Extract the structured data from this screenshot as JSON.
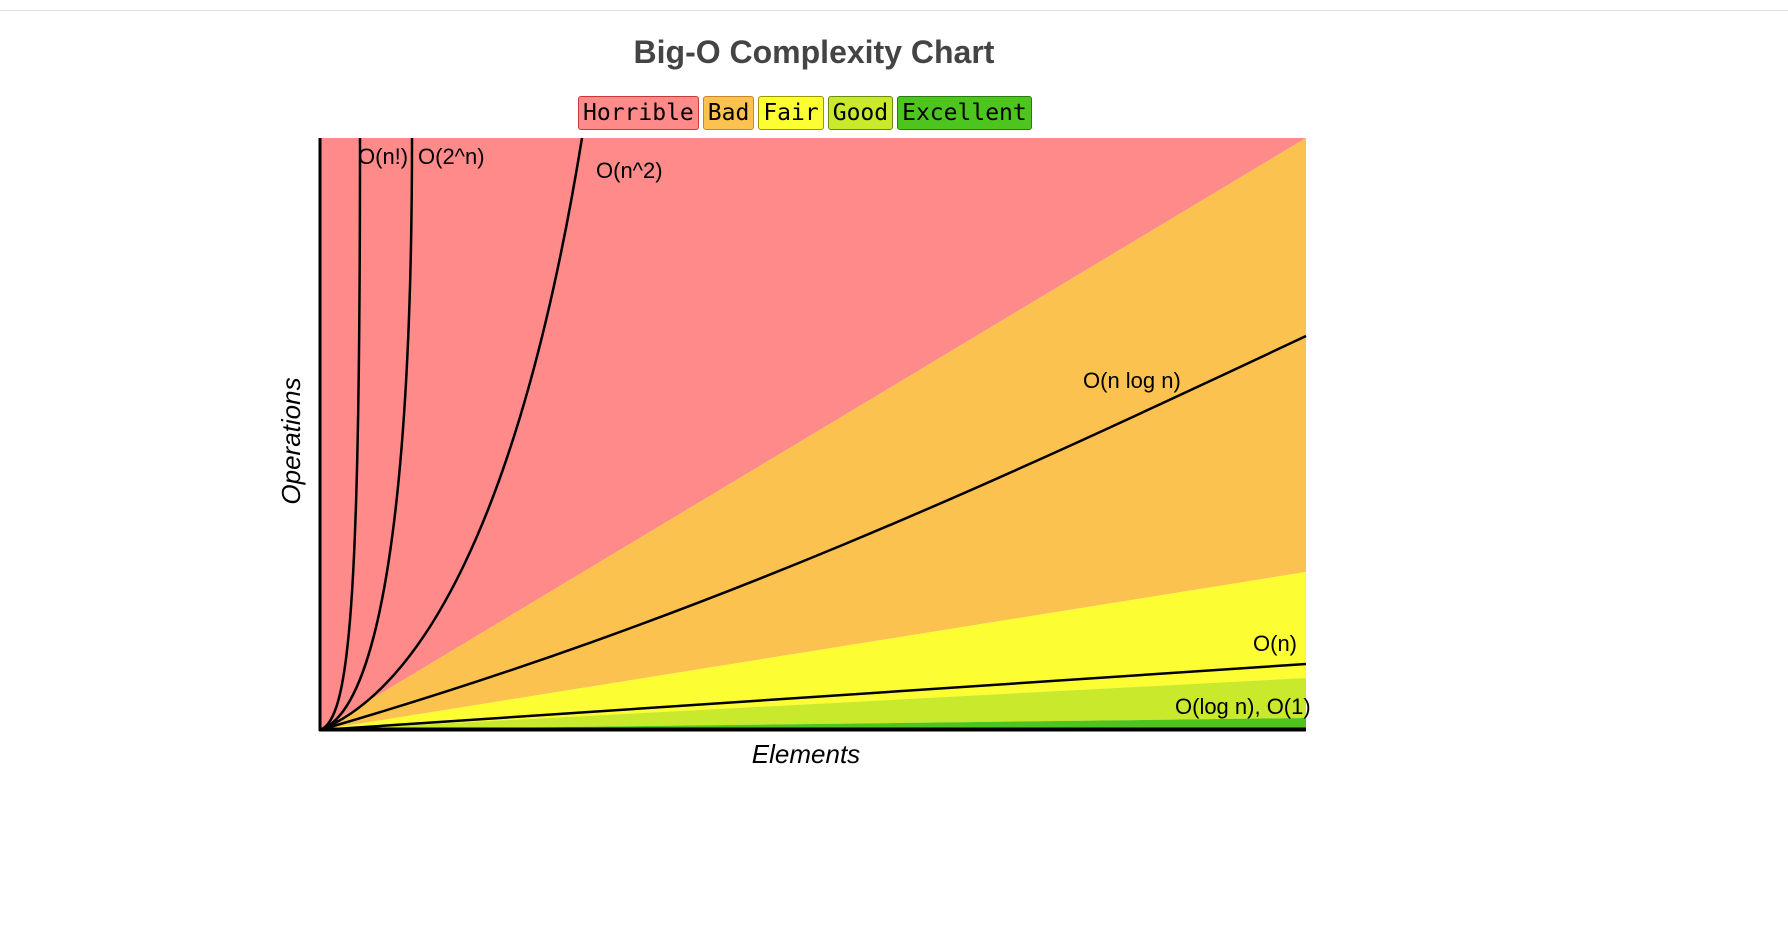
{
  "chart_data": {
    "type": "line",
    "title": "Big-O Complexity Chart",
    "xlabel": "Elements",
    "ylabel": "Operations",
    "grid": false,
    "legend_placement": "top-center",
    "legend": [
      {
        "name": "Horrible",
        "color": "#fe8a8a",
        "border": "#c83a3a"
      },
      {
        "name": "Bad",
        "color": "#fcc24f",
        "border": "#c8852a"
      },
      {
        "name": "Fair",
        "color": "#fdfd34",
        "border": "#999900"
      },
      {
        "name": "Good",
        "color": "#c9e92c",
        "border": "#6a8a10"
      },
      {
        "name": "Excellent",
        "color": "#4ec51e",
        "border": "#2a7a10"
      }
    ],
    "series": [
      {
        "name": "O(n!)",
        "label": "O(n!)"
      },
      {
        "name": "O(2^n)",
        "label": "O(2^n)"
      },
      {
        "name": "O(n^2)",
        "label": "O(n^2)"
      },
      {
        "name": "O(n log n)",
        "label": "O(n log n)"
      },
      {
        "name": "O(n)",
        "label": "O(n)"
      },
      {
        "name": "O(log n), O(1)",
        "label": "O(log n), O(1)"
      }
    ]
  }
}
